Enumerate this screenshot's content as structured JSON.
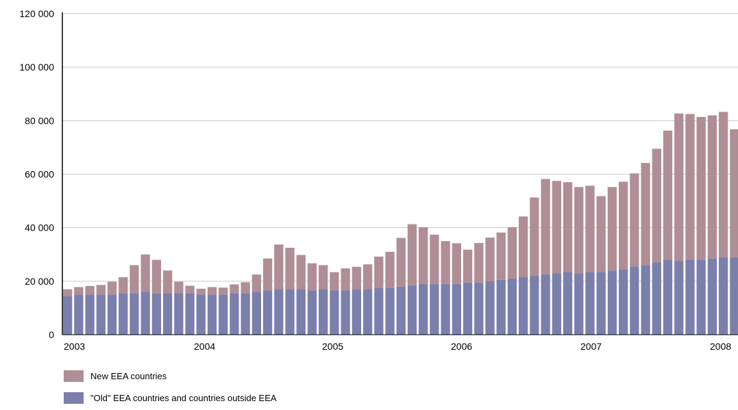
{
  "chart_data": {
    "type": "bar",
    "stacked": true,
    "xlabel": "",
    "ylabel": "",
    "ylim": [
      0,
      120000
    ],
    "yticks": [
      0,
      20000,
      40000,
      60000,
      80000,
      100000,
      120000
    ],
    "ytick_labels": [
      "0",
      "20 000",
      "40 000",
      "60 000",
      "80 000",
      "100 000",
      "120 000"
    ],
    "year_labels": [
      "2003",
      "2004",
      "2005",
      "2006",
      "2007",
      "2008"
    ],
    "grid": true,
    "legend_position": "bottom",
    "series": [
      {
        "name": "\"Old\" EEA countries and countries outside EEA",
        "color": "#7b7fac",
        "values": [
          14500,
          15000,
          15000,
          15000,
          15000,
          15500,
          15500,
          16000,
          15500,
          15500,
          15500,
          15500,
          15000,
          15000,
          15000,
          15500,
          15500,
          16000,
          16500,
          17000,
          17000,
          17000,
          16500,
          17000,
          16500,
          16500,
          17000,
          17000,
          17500,
          17500,
          18000,
          18500,
          19000,
          19000,
          19000,
          19000,
          19500,
          19500,
          20000,
          20500,
          21000,
          21500,
          22000,
          22500,
          23000,
          23500,
          23000,
          23500,
          23500,
          24000,
          24500,
          25500,
          26000,
          27000,
          28000,
          27500,
          28000,
          28000,
          28500,
          29000,
          29000
        ]
      },
      {
        "name": "New EEA countries",
        "color": "#b08e95",
        "values": [
          2500,
          2800,
          3200,
          3600,
          4800,
          6000,
          10500,
          14000,
          12500,
          8500,
          4300,
          2800,
          2200,
          2800,
          2600,
          3300,
          4100,
          6500,
          12000,
          16700,
          15500,
          12800,
          10200,
          9000,
          6900,
          8300,
          8400,
          9300,
          11700,
          13500,
          18200,
          22800,
          21200,
          18400,
          16000,
          15200,
          12300,
          14800,
          16300,
          17700,
          19200,
          22700,
          29300,
          35700,
          34500,
          33500,
          32200,
          32200,
          28300,
          31200,
          32700,
          34800,
          38200,
          42500,
          48300,
          55200,
          54500,
          53400,
          53500,
          54300,
          47800
        ]
      }
    ]
  },
  "legend": {
    "items": [
      {
        "label": "New EEA countries",
        "color": "#b08e95"
      },
      {
        "label": "\"Old\" EEA countries and countries outside EEA",
        "color": "#7b7fac"
      }
    ]
  }
}
